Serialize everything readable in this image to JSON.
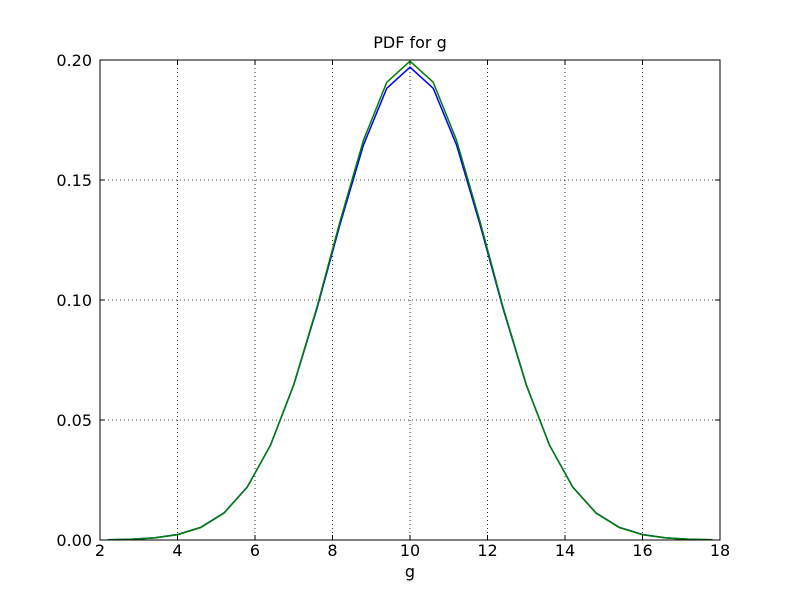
{
  "chart_data": {
    "type": "line",
    "title": "PDF for g",
    "x_label": "g",
    "x": [
      2.2,
      2.8,
      3.4,
      4.0,
      4.6,
      5.2,
      5.8,
      6.4,
      7.0,
      7.6,
      8.2,
      8.8,
      9.4,
      10.0,
      10.6,
      11.2,
      11.8,
      12.4,
      13.0,
      13.6,
      14.2,
      14.8,
      15.4,
      16.0,
      16.6,
      17.2,
      17.8
    ],
    "series": [
      {
        "name": "blue",
        "color": "#0000ff",
        "values": [
          0.0001,
          0.0003,
          0.0009,
          0.0023,
          0.0053,
          0.0113,
          0.0221,
          0.0395,
          0.0646,
          0.0965,
          0.1318,
          0.1646,
          0.1882,
          0.197,
          0.1882,
          0.1646,
          0.1318,
          0.0965,
          0.0646,
          0.0395,
          0.0221,
          0.0113,
          0.0053,
          0.0023,
          0.0009,
          0.0003,
          0.0001
        ]
      },
      {
        "name": "green",
        "color": "#008000",
        "values": [
          0.0001,
          0.0003,
          0.0009,
          0.0022,
          0.0052,
          0.0112,
          0.022,
          0.0395,
          0.0648,
          0.0971,
          0.1331,
          0.1666,
          0.1907,
          0.1995,
          0.1907,
          0.1666,
          0.1331,
          0.0971,
          0.0648,
          0.0395,
          0.022,
          0.0112,
          0.0052,
          0.0022,
          0.0009,
          0.0003,
          0.0001
        ]
      }
    ],
    "xlim": [
      2,
      18
    ],
    "xticks": [
      2,
      4,
      6,
      8,
      10,
      12,
      14,
      16,
      18
    ],
    "ylim": [
      0,
      0.2
    ],
    "yticks": [
      {
        "value": 0,
        "label": "0.00"
      },
      {
        "value": 0.05,
        "label": "0.05"
      },
      {
        "value": 0.1,
        "label": "0.10"
      },
      {
        "value": 0.15,
        "label": "0.15"
      },
      {
        "value": 0.2,
        "label": "0.20"
      }
    ],
    "grid": true
  }
}
